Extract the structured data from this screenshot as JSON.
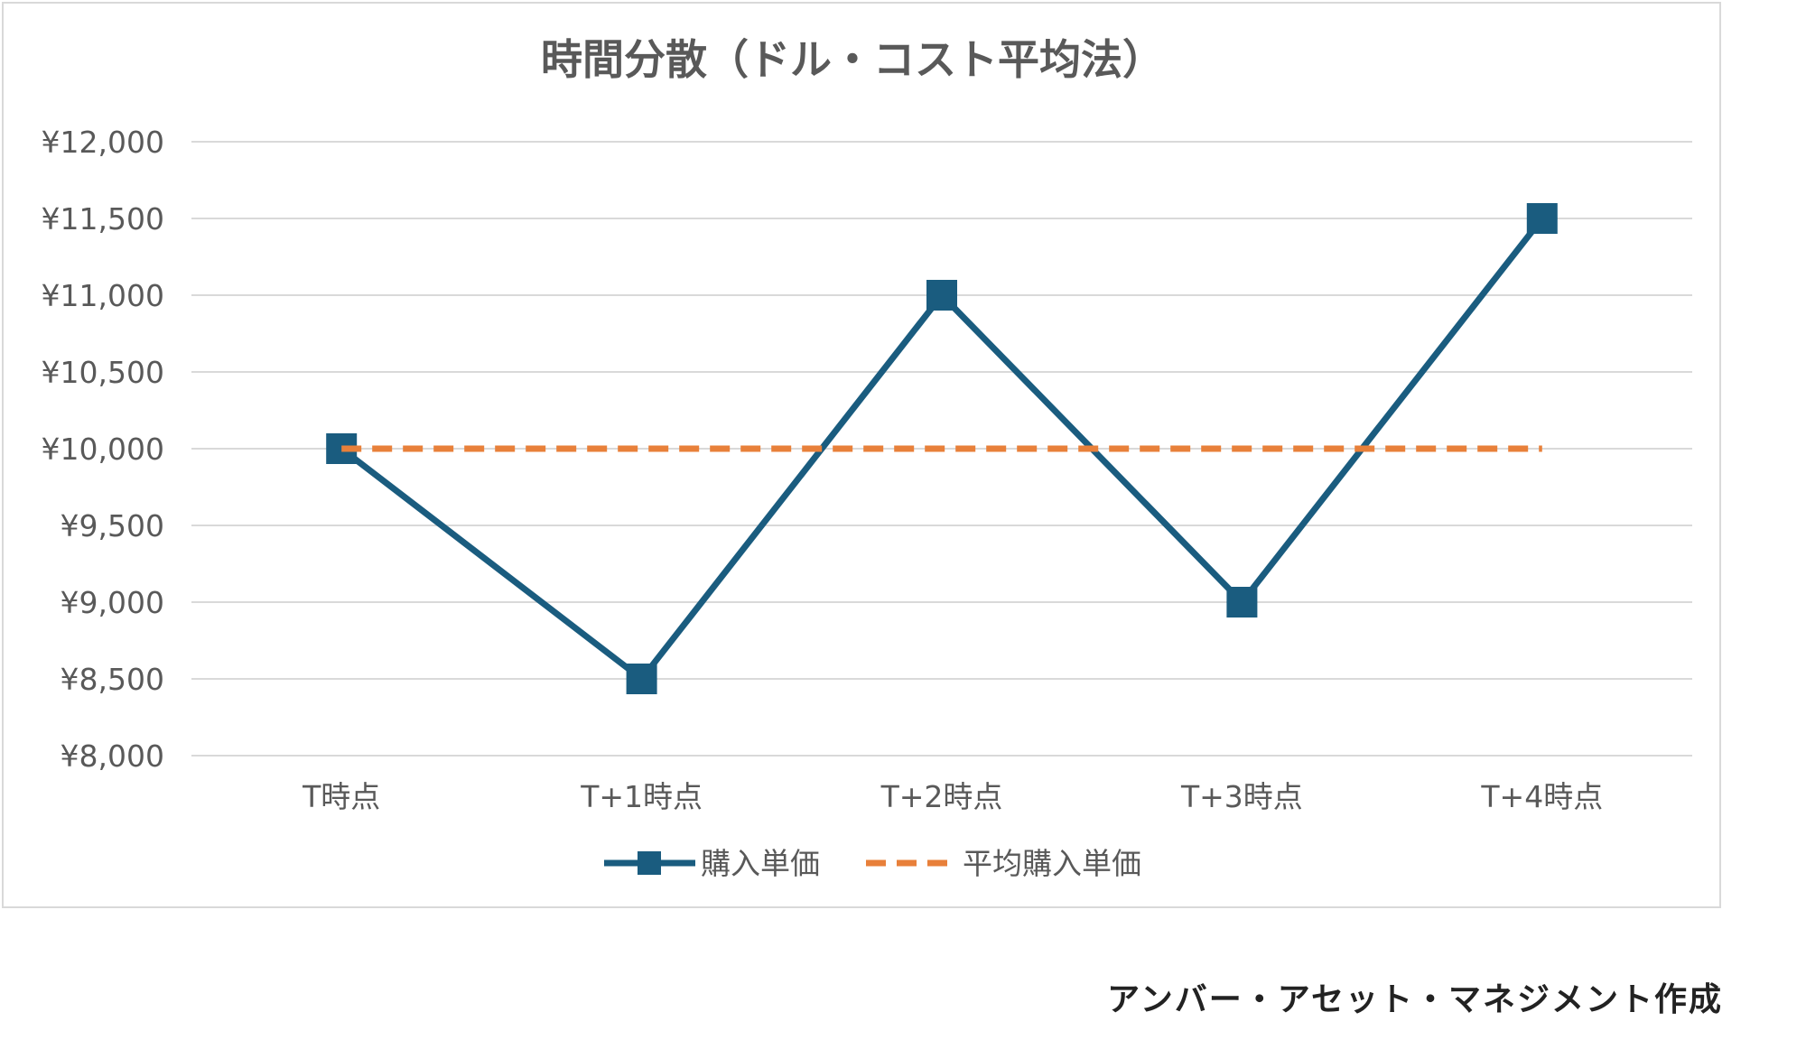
{
  "chart_data": {
    "type": "line",
    "title": "時間分散（ドル・コスト平均法）",
    "categories": [
      "T時点",
      "T+1時点",
      "T+2時点",
      "T+3時点",
      "T+4時点"
    ],
    "ylim": [
      8000,
      12000
    ],
    "yticks": [
      8000,
      8500,
      9000,
      9500,
      10000,
      10500,
      11000,
      11500,
      12000
    ],
    "ytick_labels": [
      "¥8,000",
      "¥8,500",
      "¥9,000",
      "¥9,500",
      "¥10,000",
      "¥10,500",
      "¥11,000",
      "¥11,500",
      "¥12,000"
    ],
    "grid": true,
    "legend_position": "bottom",
    "series": [
      {
        "name": "購入単価",
        "values": [
          10000,
          8500,
          11000,
          9000,
          11500
        ],
        "color": "#1a5c7f",
        "style": "solid",
        "marker": "square"
      },
      {
        "name": "平均購入単価",
        "values": [
          10000,
          10000,
          10000,
          10000,
          10000
        ],
        "color": "#e8803a",
        "style": "dashed",
        "marker": "none"
      }
    ]
  },
  "credit": "アンバー・アセット・マネジメント作成"
}
